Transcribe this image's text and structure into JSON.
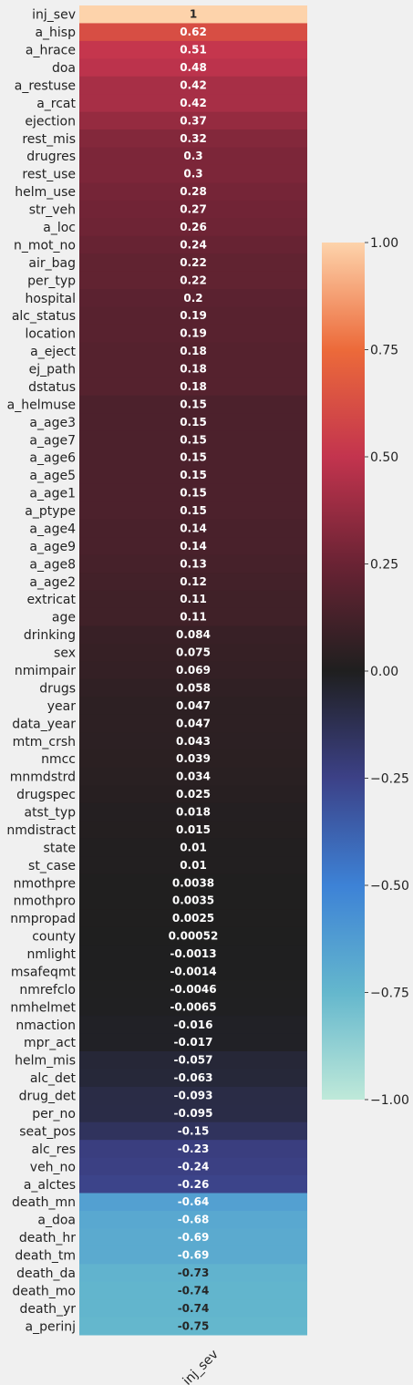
{
  "chart_data": {
    "type": "heatmap",
    "columns": [
      "inj_sev"
    ],
    "rows": [
      "inj_sev",
      "a_hisp",
      "a_hrace",
      "doa",
      "a_restuse",
      "a_rcat",
      "ejection",
      "rest_mis",
      "drugres",
      "rest_use",
      "helm_use",
      "str_veh",
      "a_loc",
      "n_mot_no",
      "air_bag",
      "per_typ",
      "hospital",
      "alc_status",
      "location",
      "a_eject",
      "ej_path",
      "dstatus",
      "a_helmuse",
      "a_age3",
      "a_age7",
      "a_age6",
      "a_age5",
      "a_age1",
      "a_ptype",
      "a_age4",
      "a_age9",
      "a_age8",
      "a_age2",
      "extricat",
      "age",
      "drinking",
      "sex",
      "nmimpair",
      "drugs",
      "year",
      "data_year",
      "mtm_crsh",
      "nmcc",
      "mnmdstrd",
      "drugspec",
      "atst_typ",
      "nmdistract",
      "state",
      "st_case",
      "nmothpre",
      "nmothpro",
      "nmpropad",
      "county",
      "nmlight",
      "msafeqmt",
      "nmrefclo",
      "nmhelmet",
      "nmaction",
      "mpr_act",
      "helm_mis",
      "alc_det",
      "drug_det",
      "per_no",
      "seat_pos",
      "alc_res",
      "veh_no",
      "a_alctes",
      "death_mn",
      "a_doa",
      "death_hr",
      "death_tm",
      "death_da",
      "death_mo",
      "death_yr",
      "a_perinj"
    ],
    "values": [
      1,
      0.62,
      0.51,
      0.48,
      0.42,
      0.42,
      0.37,
      0.32,
      0.3,
      0.3,
      0.28,
      0.27,
      0.26,
      0.24,
      0.22,
      0.22,
      0.2,
      0.19,
      0.19,
      0.18,
      0.18,
      0.18,
      0.15,
      0.15,
      0.15,
      0.15,
      0.15,
      0.15,
      0.15,
      0.14,
      0.14,
      0.13,
      0.12,
      0.11,
      0.11,
      0.084,
      0.075,
      0.069,
      0.058,
      0.047,
      0.047,
      0.043,
      0.039,
      0.034,
      0.025,
      0.018,
      0.015,
      0.01,
      0.01,
      0.0038,
      0.0035,
      0.0025,
      0.00052,
      -0.0013,
      -0.0014,
      -0.0046,
      -0.0065,
      -0.016,
      -0.017,
      -0.057,
      -0.063,
      -0.093,
      -0.095,
      -0.15,
      -0.23,
      -0.24,
      -0.26,
      -0.64,
      -0.68,
      -0.69,
      -0.69,
      -0.73,
      -0.74,
      -0.74,
      -0.75
    ],
    "labels": [
      "1",
      "0.62",
      "0.51",
      "0.48",
      "0.42",
      "0.42",
      "0.37",
      "0.32",
      "0.3",
      "0.3",
      "0.28",
      "0.27",
      "0.26",
      "0.24",
      "0.22",
      "0.22",
      "0.2",
      "0.19",
      "0.19",
      "0.18",
      "0.18",
      "0.18",
      "0.15",
      "0.15",
      "0.15",
      "0.15",
      "0.15",
      "0.15",
      "0.15",
      "0.14",
      "0.14",
      "0.13",
      "0.12",
      "0.11",
      "0.11",
      "0.084",
      "0.075",
      "0.069",
      "0.058",
      "0.047",
      "0.047",
      "0.043",
      "0.039",
      "0.034",
      "0.025",
      "0.018",
      "0.015",
      "0.01",
      "0.01",
      "0.0038",
      "0.0035",
      "0.0025",
      "0.00052",
      "-0.0013",
      "-0.0014",
      "-0.0046",
      "-0.0065",
      "-0.016",
      "-0.017",
      "-0.057",
      "-0.063",
      "-0.093",
      "-0.095",
      "-0.15",
      "-0.23",
      "-0.24",
      "-0.26",
      "-0.64",
      "-0.68",
      "-0.69",
      "-0.69",
      "-0.73",
      "-0.74",
      "-0.74",
      "-0.75"
    ],
    "colorbar": {
      "ticks": [
        "1.00",
        "0.75",
        "0.50",
        "0.25",
        "0.00",
        "−0.25",
        "−0.50",
        "−0.75",
        "−1.00"
      ],
      "tick_values": [
        1,
        0.75,
        0.5,
        0.25,
        0,
        -0.25,
        -0.5,
        -0.75,
        -1
      ],
      "range": [
        -1,
        1
      ]
    },
    "colormap": "icefire",
    "title": "",
    "xlabel": "",
    "ylabel": "",
    "grid": false
  },
  "colors": {
    "background": "#f0f0f0",
    "cmap_stops": [
      [
        -1.0,
        "#bfe9d9"
      ],
      [
        -0.75,
        "#64b7cd"
      ],
      [
        -0.5,
        "#3d82d6"
      ],
      [
        -0.25,
        "#3c4187"
      ],
      [
        0.0,
        "#1f1f1f"
      ],
      [
        0.25,
        "#6a2334"
      ],
      [
        0.5,
        "#c3344e"
      ],
      [
        0.75,
        "#ec6a3a"
      ],
      [
        1.0,
        "#fdd3ab"
      ]
    ]
  }
}
